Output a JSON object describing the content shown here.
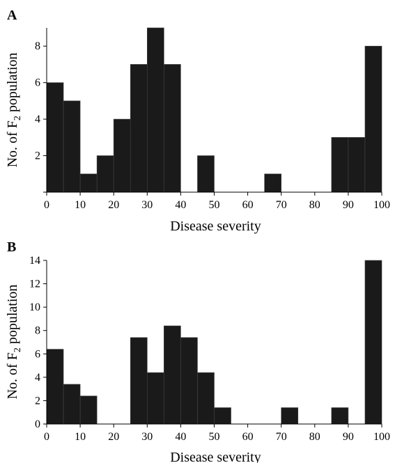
{
  "chart_data": [
    {
      "panel": "A",
      "type": "bar",
      "bin_width": 5,
      "bin_starts": [
        0,
        5,
        10,
        15,
        20,
        25,
        30,
        35,
        40,
        45,
        50,
        55,
        60,
        65,
        70,
        75,
        80,
        85,
        90,
        95
      ],
      "values": [
        6,
        5,
        1,
        2,
        4,
        7,
        9,
        7,
        0,
        2,
        0,
        0,
        0,
        1,
        0,
        0,
        0,
        3,
        3,
        8
      ],
      "xlabel": "Disease severity",
      "ylabel_main": "No. of F",
      "ylabel_sub": "2",
      "ylabel_tail": " population",
      "xlim": [
        0,
        100
      ],
      "ylim": [
        0,
        9
      ],
      "xticks": [
        0,
        10,
        20,
        30,
        40,
        50,
        60,
        70,
        80,
        90,
        100
      ],
      "yticks": [
        0,
        2,
        4,
        6,
        8
      ],
      "ytick_labels": [
        "",
        "2",
        "4",
        "6",
        "8"
      ],
      "grid": false
    },
    {
      "panel": "B",
      "type": "bar",
      "bin_width": 5,
      "bin_starts": [
        0,
        5,
        10,
        15,
        20,
        25,
        30,
        35,
        40,
        45,
        50,
        55,
        60,
        65,
        70,
        75,
        80,
        85,
        90,
        95
      ],
      "values": [
        6.4,
        3.4,
        2.4,
        0,
        0,
        7.4,
        4.4,
        8.4,
        7.4,
        4.4,
        1.4,
        0,
        0,
        0,
        1.4,
        0,
        0,
        1.4,
        0,
        14
      ],
      "xlabel": "Disease severity",
      "ylabel_main": "No. of F",
      "ylabel_sub": "2",
      "ylabel_tail": " population",
      "xlim": [
        0,
        100
      ],
      "ylim": [
        0,
        14
      ],
      "xticks": [
        0,
        10,
        20,
        30,
        40,
        50,
        60,
        70,
        80,
        90,
        100
      ],
      "yticks": [
        0,
        2,
        4,
        6,
        8,
        10,
        12,
        14
      ],
      "ytick_labels": [
        "0",
        "2",
        "4",
        "6",
        "8",
        "10",
        "12",
        "14"
      ],
      "grid": false
    }
  ]
}
